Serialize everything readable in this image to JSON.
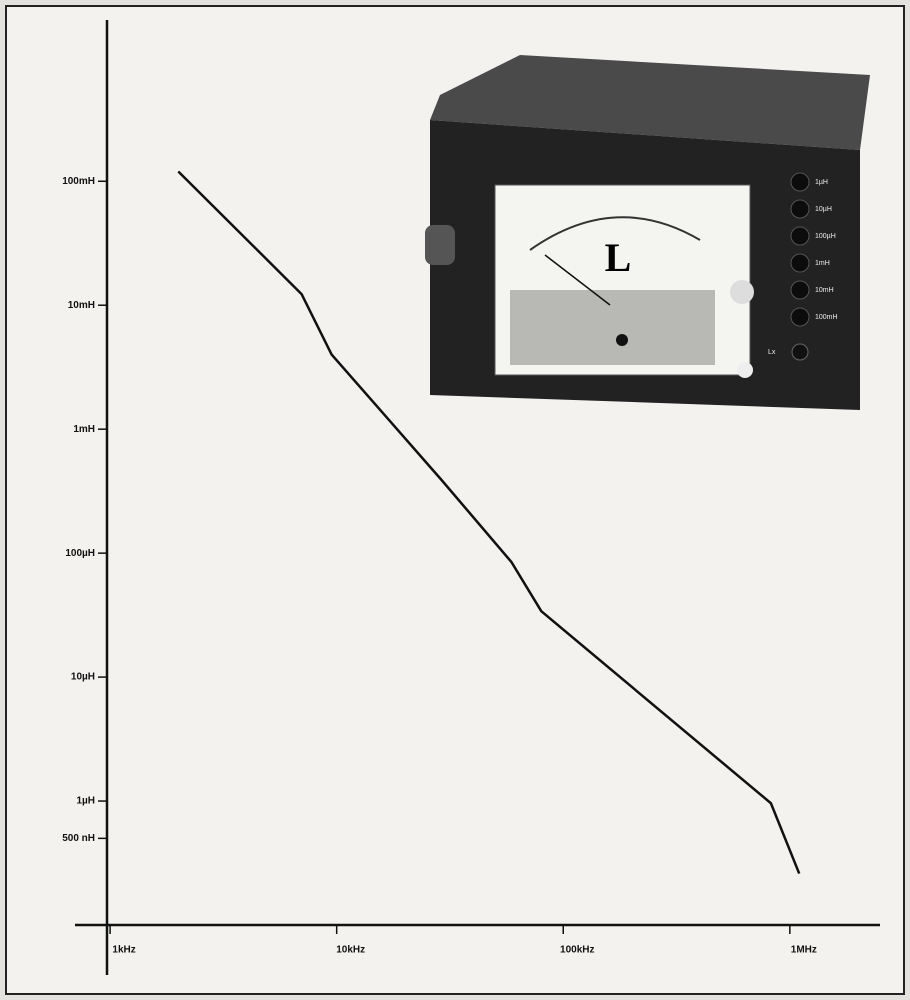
{
  "chart_data": {
    "type": "line",
    "x": [
      2000,
      7000,
      9500,
      29000,
      59000,
      80000,
      825000,
      1100000
    ],
    "values": [
      0.12,
      0.0123,
      0.004,
      0.00039,
      8.5e-05,
      3.4e-05,
      9.6e-07,
      2.6e-07
    ],
    "color": "#111111",
    "log_x": true,
    "log_y": true,
    "xlim": [
      700,
      2500000
    ],
    "ylim": [
      1e-07,
      2
    ],
    "xticks": [
      {
        "value": 1000,
        "label": "1kHz"
      },
      {
        "value": 10000,
        "label": "10kHz"
      },
      {
        "value": 100000,
        "label": "100kHz"
      },
      {
        "value": 1000000,
        "label": "1MHz"
      }
    ],
    "yticks": [
      {
        "value": 0.1,
        "label": "100mH"
      },
      {
        "value": 0.01,
        "label": "10mH"
      },
      {
        "value": 0.001,
        "label": "1mH"
      },
      {
        "value": 0.0001,
        "label": "100µH"
      },
      {
        "value": 1e-05,
        "label": "10µH"
      },
      {
        "value": 1e-06,
        "label": "1µH"
      },
      {
        "value": 5e-07,
        "label": "500 nH"
      }
    ]
  },
  "photo": {
    "meter_label": "L",
    "range_buttons": [
      "1µH",
      "10µH",
      "100µH",
      "1mH",
      "10mH",
      "100mH"
    ],
    "input_label": "Lx"
  }
}
